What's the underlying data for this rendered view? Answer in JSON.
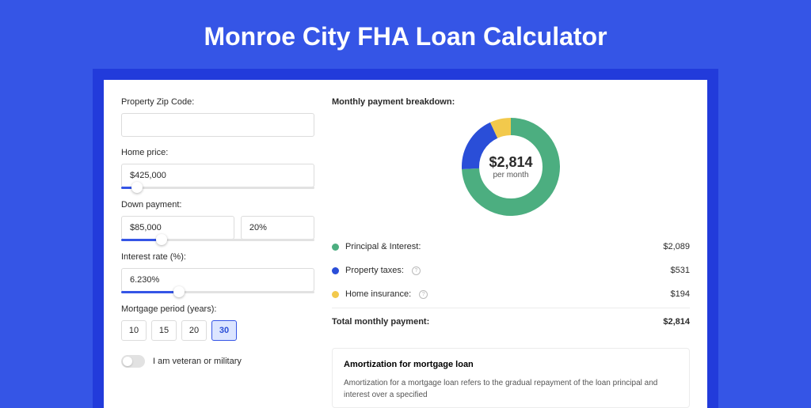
{
  "page": {
    "title": "Monroe City FHA Loan Calculator",
    "bg_color": "#3555e6",
    "inner_bg": "#223bdb",
    "panel_bg": "#ffffff"
  },
  "form": {
    "zip": {
      "label": "Property Zip Code:",
      "value": ""
    },
    "home_price": {
      "label": "Home price:",
      "value": "$425,000",
      "slider_pct": 8
    },
    "down_payment": {
      "label": "Down payment:",
      "amount": "$85,000",
      "percent": "20%",
      "slider_pct": 21
    },
    "interest_rate": {
      "label": "Interest rate (%):",
      "value": "6.230%",
      "slider_pct": 30
    },
    "period": {
      "label": "Mortgage period (years):",
      "options": [
        "10",
        "15",
        "20",
        "30"
      ],
      "selected": "30"
    },
    "veteran": {
      "label": "I am veteran or military",
      "on": false
    }
  },
  "breakdown": {
    "title": "Monthly payment breakdown:",
    "donut": {
      "amount": "$2,814",
      "subtitle": "per month",
      "radius": 62,
      "stroke": 22,
      "segments": [
        {
          "name": "principal_interest",
          "color": "#4cae80",
          "value": 2089
        },
        {
          "name": "property_taxes",
          "color": "#2a4ed8",
          "value": 531
        },
        {
          "name": "home_insurance",
          "color": "#f2c94c",
          "value": 194
        }
      ]
    },
    "rows": [
      {
        "swatch": "#4cae80",
        "label": "Principal & Interest:",
        "info": false,
        "value": "$2,089"
      },
      {
        "swatch": "#2a4ed8",
        "label": "Property taxes:",
        "info": true,
        "value": "$531"
      },
      {
        "swatch": "#f2c94c",
        "label": "Home insurance:",
        "info": true,
        "value": "$194"
      }
    ],
    "total": {
      "label": "Total monthly payment:",
      "value": "$2,814"
    }
  },
  "amortization": {
    "title": "Amortization for mortgage loan",
    "text": "Amortization for a mortgage loan refers to the gradual repayment of the loan principal and interest over a specified"
  }
}
